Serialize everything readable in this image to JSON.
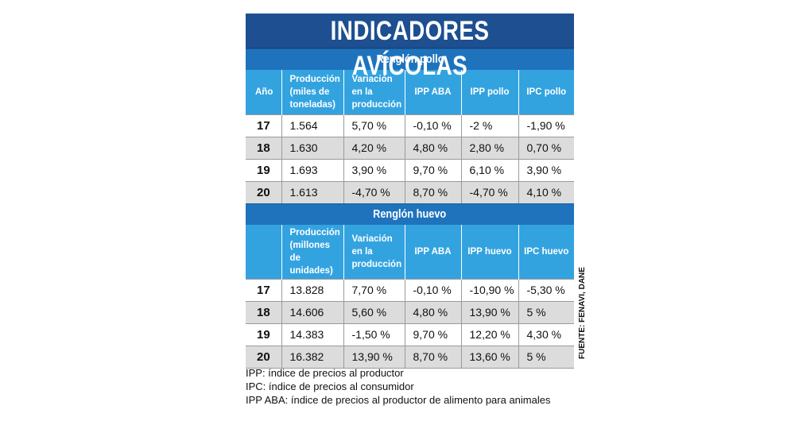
{
  "title": "INDICADORES AVÍCOLAS",
  "sections": [
    {
      "heading": "Renglón pollo",
      "columns": [
        "Año",
        "Producción (miles de toneladas)",
        "Variación en la producción",
        "IPP ABA",
        "IPP pollo",
        "IPC pollo"
      ],
      "rows": [
        [
          "17",
          "1.564",
          "5,70 %",
          "-0,10 %",
          "-2 %",
          "-1,90 %"
        ],
        [
          "18",
          "1.630",
          "4,20 %",
          "4,80 %",
          "2,80 %",
          "0,70 %"
        ],
        [
          "19",
          "1.693",
          "3,90 %",
          "9,70 %",
          "6,10 %",
          "3,90 %"
        ],
        [
          "20",
          "1.613",
          "-4,70 %",
          "8,70 %",
          "-4,70 %",
          "4,10 %"
        ]
      ]
    },
    {
      "heading": "Renglón huevo",
      "columns": [
        "",
        "Producción (millones de unidades)",
        "Variación en la producción",
        "IPP ABA",
        "IPP huevo",
        "IPC huevo"
      ],
      "rows": [
        [
          "17",
          "13.828",
          "7,70 %",
          "-0,10 %",
          "-10,90 %",
          "-5,30 %"
        ],
        [
          "18",
          "14.606",
          "5,60 %",
          "4,80 %",
          "13,90 %",
          "5 %"
        ],
        [
          "19",
          "14.383",
          "-1,50 %",
          "9,70 %",
          "12,20 %",
          "4,30 %"
        ],
        [
          "20",
          "16.382",
          "13,90 %",
          "8,70 %",
          "13,60 %",
          "5 %"
        ]
      ]
    }
  ],
  "source": "FUENTE: FENAVI, DANE",
  "notes": [
    "IPP: índice de precios al productor",
    "IPC: índice de precios al consumidor",
    "IPP ABA: índice de precios al productor de alimento para animales"
  ]
}
